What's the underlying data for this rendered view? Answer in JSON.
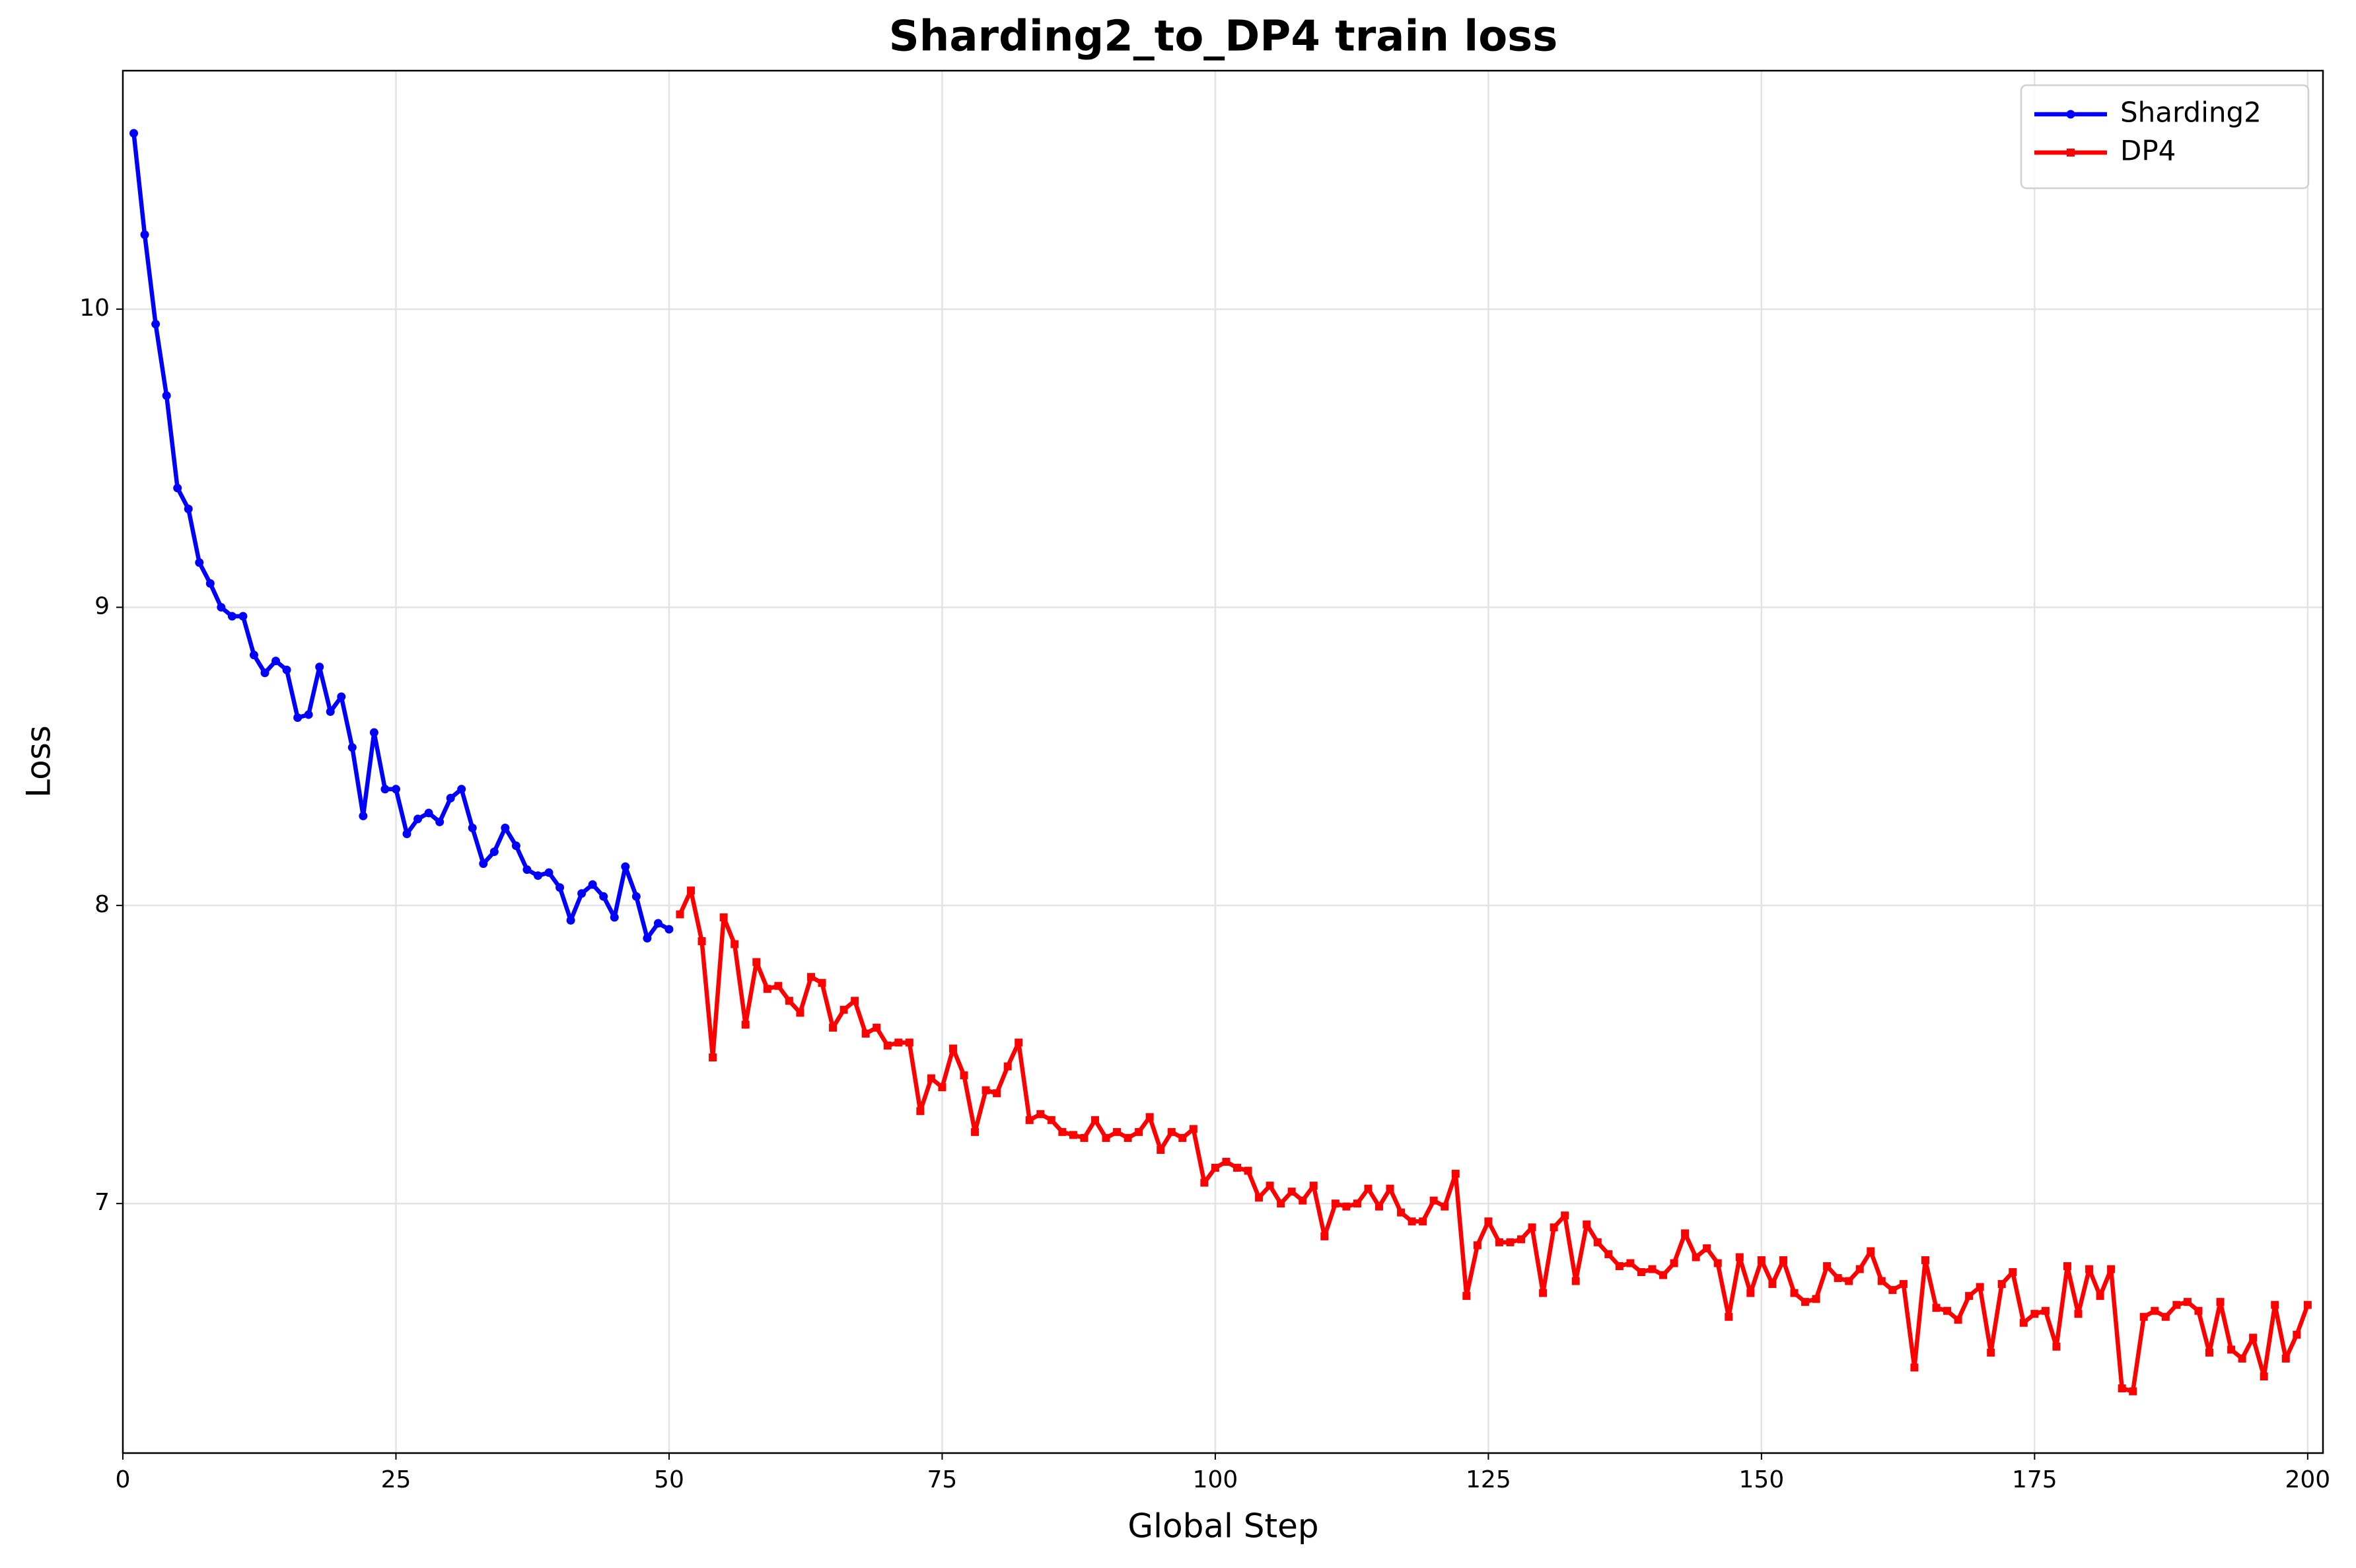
{
  "chart_data": {
    "type": "line",
    "title": "Sharding2_to_DP4 train loss",
    "x_label": "Global Step",
    "y_label": "Loss",
    "xlim": [
      0,
      201.4
    ],
    "ylim": [
      6.163,
      10.8
    ],
    "xticks": [
      0,
      25,
      50,
      75,
      100,
      125,
      150,
      175,
      200
    ],
    "yticks": [
      7,
      8,
      9,
      10
    ],
    "grid": true,
    "legend": "upper right",
    "series": [
      {
        "name": "Sharding2",
        "color": "#0000ff",
        "marker": "circle",
        "x": [
          1,
          2,
          3,
          4,
          5,
          6,
          7,
          8,
          9,
          10,
          11,
          12,
          13,
          14,
          15,
          16,
          17,
          18,
          19,
          20,
          21,
          22,
          23,
          24,
          25,
          26,
          27,
          28,
          29,
          30,
          31,
          32,
          33,
          34,
          35,
          36,
          37,
          38,
          39,
          40,
          41,
          42,
          43,
          44,
          45,
          46,
          47,
          48,
          49,
          50
        ],
        "values": [
          10.59,
          10.25,
          9.95,
          9.71,
          9.4,
          9.33,
          9.15,
          9.08,
          9.0,
          8.97,
          8.97,
          8.84,
          8.78,
          8.82,
          8.79,
          8.63,
          8.64,
          8.8,
          8.65,
          8.7,
          8.53,
          8.3,
          8.58,
          8.39,
          8.39,
          8.24,
          8.29,
          8.31,
          8.28,
          8.36,
          8.39,
          8.26,
          8.14,
          8.18,
          8.26,
          8.2,
          8.12,
          8.1,
          8.11,
          8.06,
          7.95,
          8.04,
          8.07,
          8.03,
          7.96,
          8.13,
          8.03,
          7.89,
          7.94,
          7.92
        ]
      },
      {
        "name": "DP4",
        "color": "#ff0000",
        "marker": "square",
        "x": [
          51,
          52,
          53,
          54,
          55,
          56,
          57,
          58,
          59,
          60,
          61,
          62,
          63,
          64,
          65,
          66,
          67,
          68,
          69,
          70,
          71,
          72,
          73,
          74,
          75,
          76,
          77,
          78,
          79,
          80,
          81,
          82,
          83,
          84,
          85,
          86,
          87,
          88,
          89,
          90,
          91,
          92,
          93,
          94,
          95,
          96,
          97,
          98,
          99,
          100,
          101,
          102,
          103,
          104,
          105,
          106,
          107,
          108,
          109,
          110,
          111,
          112,
          113,
          114,
          115,
          116,
          117,
          118,
          119,
          120,
          121,
          122,
          123,
          124,
          125,
          126,
          127,
          128,
          129,
          130,
          131,
          132,
          133,
          134,
          135,
          136,
          137,
          138,
          139,
          140,
          141,
          142,
          143,
          144,
          145,
          146,
          147,
          148,
          149,
          150,
          151,
          152,
          153,
          154,
          155,
          156,
          157,
          158,
          159,
          160,
          161,
          162,
          163,
          164,
          165,
          166,
          167,
          168,
          169,
          170,
          171,
          172,
          173,
          174,
          175,
          176,
          177,
          178,
          179,
          180,
          181,
          182,
          183,
          184,
          185,
          186,
          187,
          188,
          189,
          190,
          191,
          192,
          193,
          194,
          195,
          196,
          197,
          198,
          199,
          200
        ],
        "values": [
          7.97,
          8.05,
          7.88,
          7.49,
          7.96,
          7.87,
          7.6,
          7.81,
          7.72,
          7.73,
          7.68,
          7.64,
          7.76,
          7.74,
          7.59,
          7.65,
          7.68,
          7.57,
          7.59,
          7.53,
          7.54,
          7.54,
          7.31,
          7.42,
          7.39,
          7.52,
          7.43,
          7.24,
          7.38,
          7.37,
          7.46,
          7.54,
          7.28,
          7.3,
          7.28,
          7.24,
          7.23,
          7.22,
          7.28,
          7.22,
          7.24,
          7.22,
          7.24,
          7.29,
          7.18,
          7.24,
          7.22,
          7.25,
          7.07,
          7.12,
          7.14,
          7.12,
          7.11,
          7.02,
          7.06,
          7.0,
          7.04,
          7.01,
          7.06,
          6.89,
          7.0,
          6.99,
          7.0,
          7.05,
          6.99,
          7.05,
          6.97,
          6.94,
          6.94,
          7.01,
          6.99,
          7.1,
          6.69,
          6.86,
          6.94,
          6.87,
          6.87,
          6.88,
          6.92,
          6.7,
          6.92,
          6.96,
          6.74,
          6.93,
          6.87,
          6.83,
          6.79,
          6.8,
          6.77,
          6.78,
          6.76,
          6.8,
          6.9,
          6.82,
          6.85,
          6.8,
          6.62,
          6.82,
          6.7,
          6.81,
          6.73,
          6.81,
          6.7,
          6.67,
          6.68,
          6.79,
          6.75,
          6.74,
          6.78,
          6.84,
          6.74,
          6.71,
          6.73,
          6.45,
          6.81,
          6.65,
          6.64,
          6.61,
          6.69,
          6.72,
          6.5,
          6.73,
          6.77,
          6.6,
          6.63,
          6.64,
          6.52,
          6.79,
          6.63,
          6.78,
          6.69,
          6.78,
          6.38,
          6.37,
          6.62,
          6.64,
          6.62,
          6.66,
          6.67,
          6.64,
          6.5,
          6.67,
          6.51,
          6.48,
          6.55,
          6.42,
          6.66,
          6.48,
          6.56,
          6.66
        ]
      }
    ]
  }
}
